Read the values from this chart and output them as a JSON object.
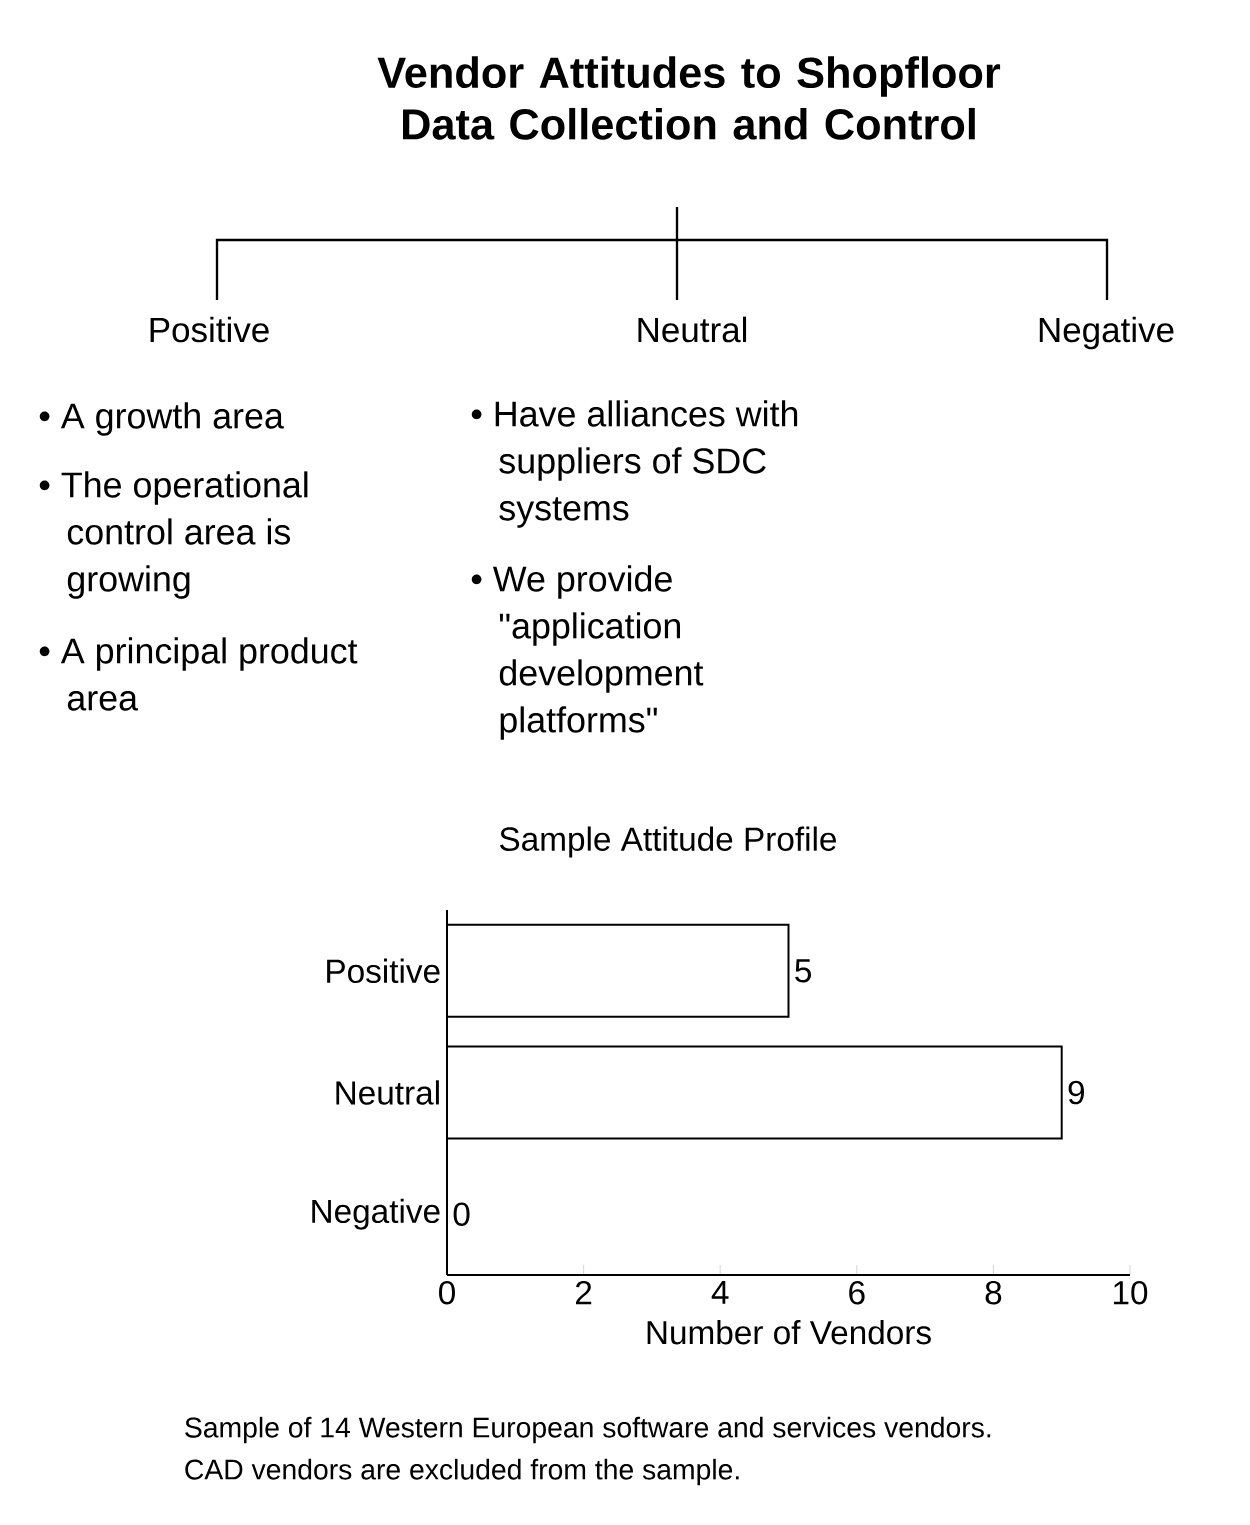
{
  "chart_data": {
    "type": "bar",
    "orientation": "horizontal",
    "title": "Vendor Attitudes to Shopfloor Data Collection and Control",
    "subtitle": "Sample Attitude Profile",
    "categories": [
      "Positive",
      "Neutral",
      "Negative"
    ],
    "values": [
      5,
      9,
      0
    ],
    "color": "#000000",
    "xlim": [
      0,
      10
    ],
    "xticks": [
      0,
      2,
      4,
      6,
      8,
      10
    ],
    "xlabel": "Number of Vendors",
    "data_labels": true,
    "annotations": [
      "Positive",
      "Neutral",
      "Negative",
      "• A growth area",
      "• The operational control area is growing",
      "• A principal product area",
      "• Have alliances with suppliers of SDC systems",
      "• We provide \"application development platforms\"",
      "Sample of 14 Western European software and services vendors.",
      "CAD vendors are excluded from the sample."
    ]
  }
}
